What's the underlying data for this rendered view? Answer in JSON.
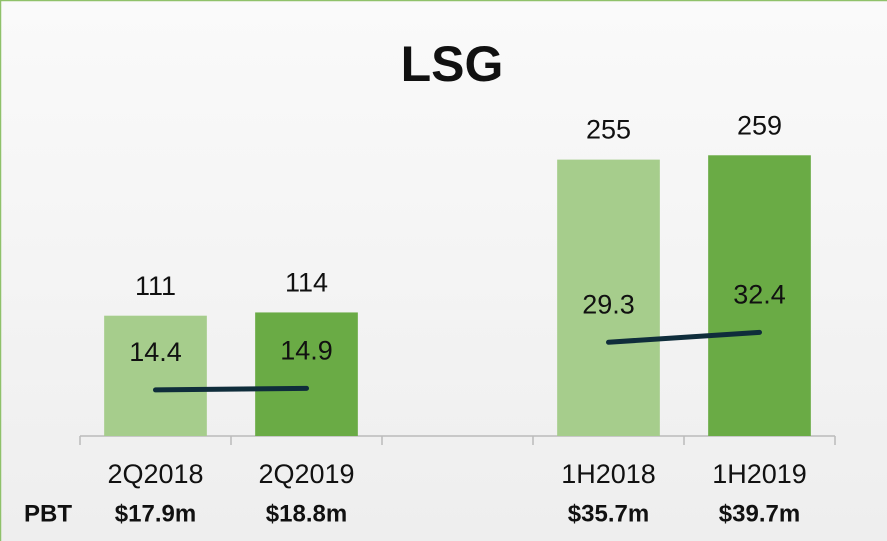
{
  "chart_data": {
    "type": "bar",
    "title": "LSG",
    "categories": [
      "2Q2018",
      "2Q2019",
      null,
      "1H2018",
      "1H2019"
    ],
    "series": [
      {
        "type": "bar",
        "colors": [
          "#a6cd8c",
          "#6aab45",
          null,
          "#a6cd8c",
          "#6aab45"
        ],
        "values": [
          111,
          114,
          null,
          255,
          259
        ]
      },
      {
        "type": "line",
        "axis": "y2",
        "color": "#0f2d3b",
        "values": [
          14.4,
          14.9,
          null,
          29.3,
          32.4
        ]
      }
    ],
    "ylim": [
      0,
      310
    ],
    "y2lim": [
      0,
      105
    ],
    "row_label": "PBT",
    "row_values": [
      "$17.9m",
      "$18.8m",
      null,
      "$35.7m",
      "$39.7m"
    ]
  }
}
